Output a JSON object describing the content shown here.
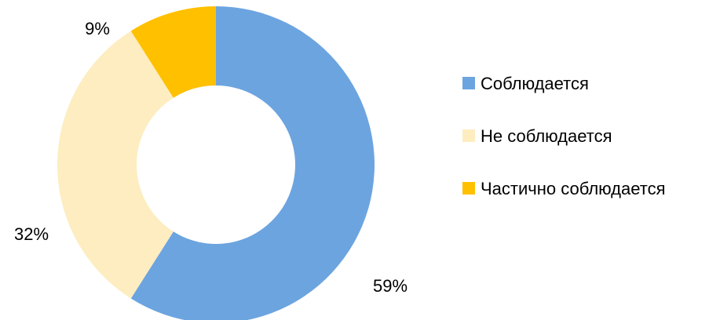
{
  "chart_data": {
    "type": "pie",
    "donut": true,
    "categories": [
      "Соблюдается",
      "Не соблюдается",
      "Частично соблюдается"
    ],
    "values": [
      59,
      32,
      9
    ],
    "labels": [
      "59%",
      "32%",
      "9%"
    ],
    "colors": [
      "#6CA4E0",
      "#FDEDC0",
      "#FFC000"
    ],
    "legend_placement": "right"
  }
}
